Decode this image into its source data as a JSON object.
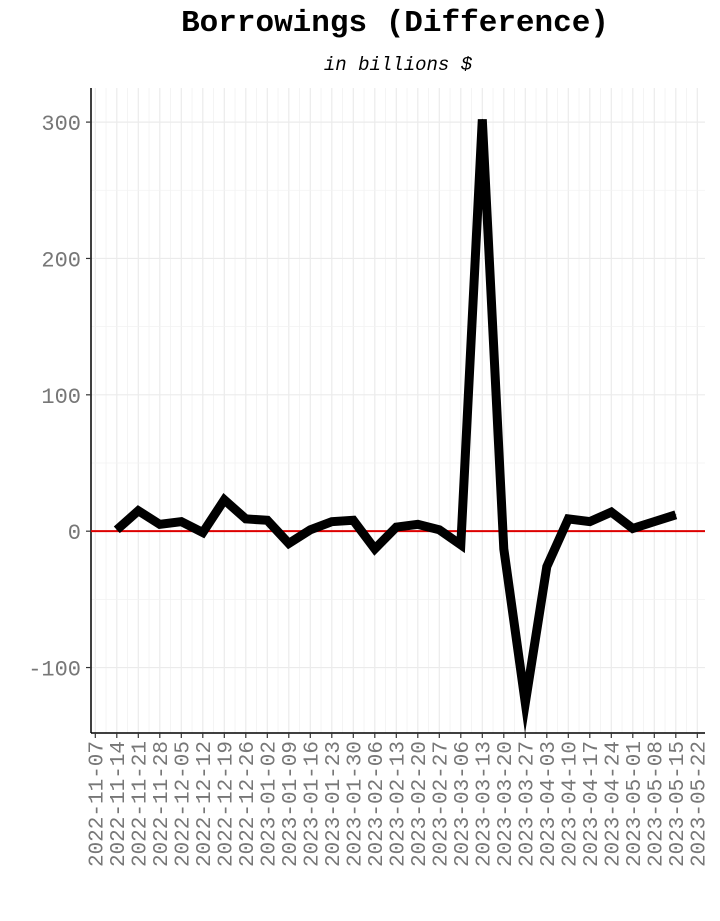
{
  "chart_data": {
    "type": "line",
    "title": "Borrowings (Difference)",
    "subtitle": "in billions $",
    "xlabel": "",
    "ylabel": "",
    "ylim": [
      -148,
      325
    ],
    "y_ticks": [
      -100,
      0,
      100,
      200,
      300
    ],
    "y_tick_labels": [
      "-100",
      "0",
      "100",
      "200",
      "300"
    ],
    "x_tick_labels": [
      "2022-11-07",
      "2022-11-14",
      "2022-11-21",
      "2022-11-28",
      "2022-12-05",
      "2022-12-12",
      "2022-12-19",
      "2022-12-26",
      "2023-01-02",
      "2023-01-09",
      "2023-01-16",
      "2023-01-23",
      "2023-01-30",
      "2023-02-06",
      "2023-02-13",
      "2023-02-20",
      "2023-02-27",
      "2023-03-06",
      "2023-03-13",
      "2023-03-20",
      "2023-03-27",
      "2023-04-03",
      "2023-04-10",
      "2023-04-17",
      "2023-04-24",
      "2023-05-01",
      "2023-05-08",
      "2023-05-15",
      "2023-05-22"
    ],
    "grid": true,
    "reference_line": {
      "y": 0,
      "color": "#dd0000"
    },
    "series": [
      {
        "color": "#000000",
        "x": [
          "2022-11-14",
          "2022-11-21",
          "2022-11-28",
          "2022-12-05",
          "2022-12-12",
          "2022-12-19",
          "2022-12-26",
          "2023-01-02",
          "2023-01-09",
          "2023-01-16",
          "2023-01-23",
          "2023-01-30",
          "2023-02-06",
          "2023-02-13",
          "2023-02-20",
          "2023-02-27",
          "2023-03-06",
          "2023-03-13",
          "2023-03-20",
          "2023-03-27",
          "2023-04-03",
          "2023-04-10",
          "2023-04-17",
          "2023-04-24",
          "2023-05-01",
          "2023-05-08",
          "2023-05-15"
        ],
        "values": [
          1,
          15,
          5,
          7,
          -1,
          23,
          9,
          8,
          -9,
          1,
          7,
          8,
          -13,
          3,
          5,
          1,
          -10,
          302,
          -13,
          -126,
          -26,
          9,
          7,
          14,
          2,
          7,
          12
        ]
      }
    ]
  }
}
